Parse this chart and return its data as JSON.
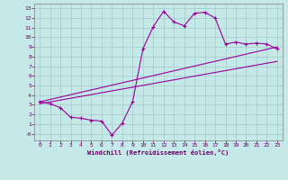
{
  "xlabel": "Windchill (Refroidissement éolien,°C)",
  "bg_color": "#c5e8e8",
  "grid_color": "#a8cece",
  "line_color": "#990099",
  "xlim": [
    -0.5,
    23.5
  ],
  "ylim": [
    -0.7,
    13.5
  ],
  "xticks": [
    0,
    1,
    2,
    3,
    4,
    5,
    6,
    7,
    8,
    9,
    10,
    11,
    12,
    13,
    14,
    15,
    16,
    17,
    18,
    19,
    20,
    21,
    22,
    23
  ],
  "yticks": [
    0,
    1,
    2,
    3,
    4,
    5,
    6,
    7,
    8,
    9,
    10,
    11,
    12,
    13
  ],
  "line1_x": [
    0,
    1,
    2,
    3,
    4,
    5,
    6,
    7,
    8,
    9,
    10,
    11,
    12,
    13,
    14,
    15,
    16,
    17,
    18,
    19,
    20,
    21,
    22,
    23
  ],
  "line1_y": [
    3.3,
    3.1,
    2.7,
    1.7,
    1.6,
    1.4,
    1.3,
    -0.15,
    1.1,
    3.3,
    8.8,
    11.1,
    12.7,
    11.6,
    11.2,
    12.5,
    12.6,
    12.0,
    9.3,
    9.5,
    9.3,
    9.4,
    9.3,
    8.8
  ],
  "line2_x": [
    0,
    23
  ],
  "line2_y": [
    3.3,
    9.0
  ],
  "line3_x": [
    0,
    23
  ],
  "line3_y": [
    3.1,
    7.5
  ]
}
